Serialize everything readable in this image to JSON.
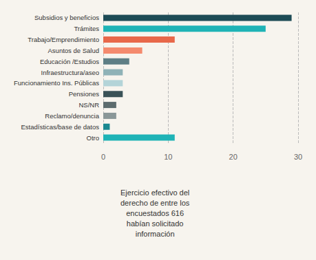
{
  "chart_data": {
    "type": "bar",
    "orientation": "horizontal",
    "categories": [
      "Subsidios y beneficios",
      "Trámites",
      "Trabajo/Emprendimiento",
      "Asuntos de Salud",
      "Educación /Estudios",
      "Infraestructura/aseo",
      "Funcionamiento Ins. Públicas",
      "Pensiones",
      "NS/NR",
      "Reclamo/denuncia",
      "Estadísticas/base de datos",
      "Otro"
    ],
    "values": [
      29,
      25,
      11,
      6,
      4,
      3,
      3,
      3,
      2,
      2,
      1,
      11
    ],
    "colors": [
      "#1d4b55",
      "#1fb3b6",
      "#e8684a",
      "#f48a6e",
      "#5e7e85",
      "#8fb2b7",
      "#b3d4d8",
      "#3a5257",
      "#5d6c6e",
      "#8a9798",
      "#1a8890",
      "#1fb3b6"
    ],
    "xlim": [
      0,
      30
    ],
    "xticks": [
      0,
      10,
      20,
      30
    ],
    "grid": true,
    "annotation": "Ejercicio efectivo del\nderecho de entre los\nencuestados 616\nhabían solicitado\ninformación"
  }
}
